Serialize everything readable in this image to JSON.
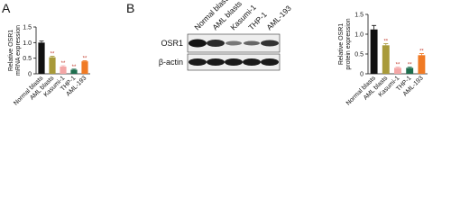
{
  "chart_data": [
    {
      "type": "bar",
      "panel_label": "A",
      "ylabel": [
        "Relative OSR1",
        "mRNA expression"
      ],
      "categories": [
        "Normal blasts",
        "AML blasts",
        "Kasumi-1",
        "THP-1",
        "AML-193"
      ],
      "values": [
        1.0,
        0.53,
        0.23,
        0.13,
        0.4
      ],
      "errors": [
        0.05,
        0.03,
        0.03,
        0.02,
        0.02
      ],
      "annotations": [
        null,
        "**",
        "**",
        "**",
        "**"
      ],
      "colors": [
        "#111111",
        "#a89a3a",
        "#f4a6a6",
        "#1e6e4e",
        "#f07a24"
      ],
      "ylim": [
        0,
        1.5
      ],
      "yticks": [
        0,
        0.5,
        {
          "value": 1,
          "label": "1.0"
        },
        1.5
      ]
    },
    {
      "type": "bar",
      "panel_label": "B",
      "ylabel": [
        "Relative OSR1",
        "protein expression"
      ],
      "categories": [
        "Normal blasts",
        "AML blasts",
        "Kasumi-1",
        "THP-1",
        "AML-193"
      ],
      "values": [
        1.12,
        0.72,
        0.15,
        0.15,
        0.47
      ],
      "errors": [
        0.1,
        0.04,
        0.02,
        0.02,
        0.04
      ],
      "annotations": [
        null,
        "**",
        "**",
        "**",
        "**"
      ],
      "colors": [
        "#111111",
        "#a89a3a",
        "#f4a6a6",
        "#1e6e4e",
        "#f07a24"
      ],
      "ylim": [
        0,
        1.5
      ],
      "yticks": [
        0,
        0.5,
        {
          "value": 1,
          "label": "1.0"
        },
        1.5
      ]
    }
  ],
  "blot": {
    "lanes": [
      "Normal blasts",
      "AML blasts",
      "Kasumi-1",
      "THP-1",
      "AML-193"
    ],
    "rows": [
      "OSR1",
      "β-actin"
    ]
  }
}
